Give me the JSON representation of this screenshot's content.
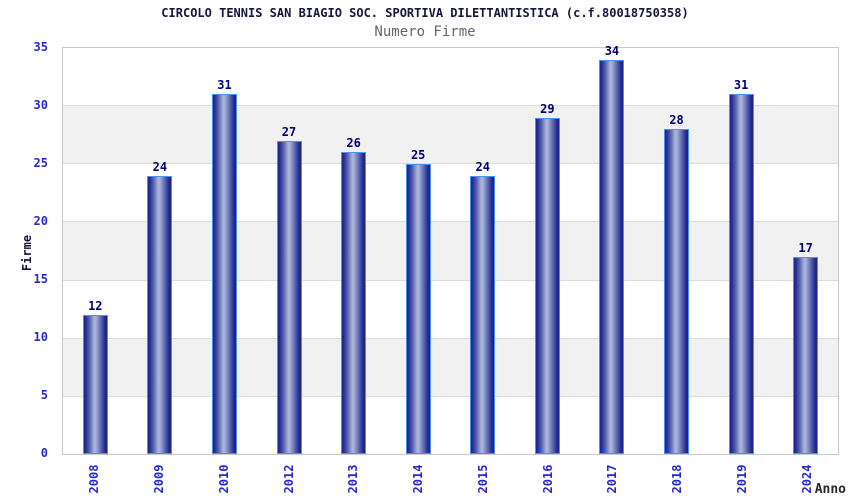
{
  "header": {
    "title": "CIRCOLO TENNIS SAN BIAGIO SOC. SPORTIVA DILETTANTISTICA (c.f.80018750358)",
    "subtitle": "Numero Firme"
  },
  "chart_data": {
    "type": "bar",
    "title": "CIRCOLO TENNIS SAN BIAGIO SOC. SPORTIVA DILETTANTISTICA (c.f.80018750358)",
    "subtitle": "Numero Firme",
    "categories": [
      "2008",
      "2009",
      "2010",
      "2012",
      "2013",
      "2014",
      "2015",
      "2016",
      "2017",
      "2018",
      "2019",
      "2024"
    ],
    "values": [
      12,
      24,
      31,
      27,
      26,
      25,
      24,
      29,
      34,
      28,
      31,
      17
    ],
    "xlabel": "Anno",
    "ylabel": "Firme",
    "ylim": [
      0,
      35
    ],
    "yticks": [
      0,
      5,
      10,
      15,
      20,
      25,
      30,
      35
    ],
    "grid": "horizontal gridlines every 5 units with alternating white/gray bands (gray: 5-10, 15-20, 25-30)",
    "legend": "none",
    "bar_labels_shown": true,
    "colors": {
      "bar_edge": "#1b2290",
      "bar_center": "#aeb8de",
      "bar_border": "#4a90f5",
      "tick_labels": "#2727cf",
      "value_labels": "#000070",
      "title": "#15153f",
      "subtitle": "#666666",
      "band_gray": "#f1f1f1",
      "gridline": "#dcdcdc",
      "plot_border": "#c9c9c9"
    }
  }
}
